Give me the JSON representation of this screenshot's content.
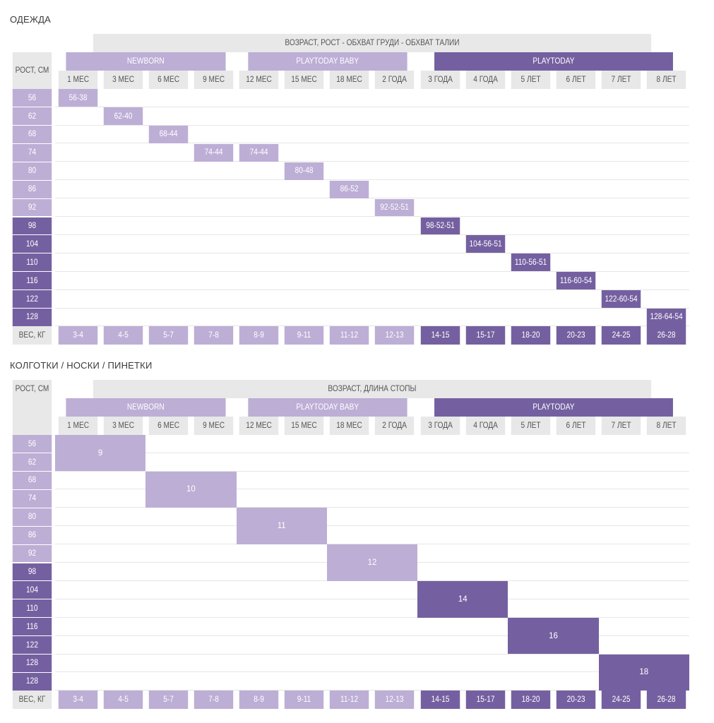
{
  "table1": {
    "title": "ОДЕЖДА",
    "height_header": "РОСТ, СМ",
    "top_header": "ВОЗРАСТ, РОСТ - ОБХВАТ ГРУДИ - ОБХВАТ ТАЛИИ",
    "groups": [
      {
        "label": "NEWBORN",
        "span": 4,
        "tone": "light"
      },
      {
        "label": "PLAYTODAY BABY",
        "span": 4,
        "tone": "light"
      },
      {
        "label": "PLAYTODAY",
        "span": 6,
        "tone": "dark"
      }
    ],
    "ages": [
      "1 МЕС",
      "3 МЕС",
      "6 МЕС",
      "9 МЕС",
      "12 МЕС",
      "15 МЕС",
      "18 МЕС",
      "2 ГОДА",
      "3 ГОДА",
      "4 ГОДА",
      "5 ЛЕТ",
      "6 ЛЕТ",
      "7 ЛЕТ",
      "8 ЛЕТ"
    ],
    "rows": [
      {
        "height": "56",
        "tone": "light",
        "cells": [
          {
            "col": 0,
            "text": "56-38"
          }
        ]
      },
      {
        "height": "62",
        "tone": "light",
        "cells": [
          {
            "col": 1,
            "text": "62-40"
          }
        ]
      },
      {
        "height": "68",
        "tone": "light",
        "cells": [
          {
            "col": 2,
            "text": "68-44"
          }
        ]
      },
      {
        "height": "74",
        "tone": "light",
        "cells": [
          {
            "col": 3,
            "text": "74-44"
          },
          {
            "col": 4,
            "text": "74-44"
          }
        ]
      },
      {
        "height": "80",
        "tone": "light",
        "cells": [
          {
            "col": 5,
            "text": "80-48"
          }
        ]
      },
      {
        "height": "86",
        "tone": "light",
        "cells": [
          {
            "col": 6,
            "text": "86-52"
          }
        ]
      },
      {
        "height": "92",
        "tone": "light",
        "cells": [
          {
            "col": 7,
            "text": "92-52-51"
          }
        ]
      },
      {
        "height": "98",
        "tone": "dark",
        "cells": [
          {
            "col": 8,
            "text": "98-52-51"
          }
        ]
      },
      {
        "height": "104",
        "tone": "dark",
        "cells": [
          {
            "col": 9,
            "text": "104-56-51"
          }
        ]
      },
      {
        "height": "110",
        "tone": "dark",
        "cells": [
          {
            "col": 10,
            "text": "110-56-51"
          }
        ]
      },
      {
        "height": "116",
        "tone": "dark",
        "cells": [
          {
            "col": 11,
            "text": "116-60-54"
          }
        ]
      },
      {
        "height": "122",
        "tone": "dark",
        "cells": [
          {
            "col": 12,
            "text": "122-60-54"
          }
        ]
      },
      {
        "height": "128",
        "tone": "dark",
        "cells": [
          {
            "col": 13,
            "text": "128-64-54"
          }
        ]
      }
    ],
    "weight_header": "ВЕС, КГ",
    "weights": [
      "3-4",
      "4-5",
      "5-7",
      "7-8",
      "8-9",
      "9-11",
      "11-12",
      "12-13",
      "14-15",
      "15-17",
      "18-20",
      "20-23",
      "24-25",
      "26-28"
    ]
  },
  "table2": {
    "title": "КОЛГОТКИ / НОСКИ / ПИНЕТКИ",
    "height_header": "РОСТ, СМ",
    "top_header": "ВОЗРАСТ, ДЛИНА СТОПЫ",
    "groups": [
      {
        "label": "NEWBORN",
        "span": 4,
        "tone": "light"
      },
      {
        "label": "PLAYTODAY BABY",
        "span": 4,
        "tone": "light"
      },
      {
        "label": "PLAYTODAY",
        "span": 6,
        "tone": "dark"
      }
    ],
    "ages": [
      "1 МЕС",
      "3 МЕС",
      "6 МЕС",
      "9 МЕС",
      "12 МЕС",
      "15 МЕС",
      "18 МЕС",
      "2 ГОДА",
      "3 ГОДА",
      "4 ГОДА",
      "5 ЛЕТ",
      "6 ЛЕТ",
      "7 ЛЕТ",
      "8 ЛЕТ"
    ],
    "heights": [
      {
        "label": "56",
        "tone": "light"
      },
      {
        "label": "62",
        "tone": "light"
      },
      {
        "label": "68",
        "tone": "light"
      },
      {
        "label": "74",
        "tone": "light"
      },
      {
        "label": "80",
        "tone": "light"
      },
      {
        "label": "86",
        "tone": "light"
      },
      {
        "label": "92",
        "tone": "light"
      },
      {
        "label": "98",
        "tone": "dark"
      },
      {
        "label": "104",
        "tone": "dark"
      },
      {
        "label": "110",
        "tone": "dark"
      },
      {
        "label": "116",
        "tone": "dark"
      },
      {
        "label": "122",
        "tone": "dark"
      },
      {
        "label": "128",
        "tone": "dark"
      },
      {
        "label": "128",
        "tone": "dark"
      }
    ],
    "blocks": [
      {
        "row": 0,
        "rows": 2,
        "col": 0,
        "cols": 2,
        "text": "9",
        "tone": "light"
      },
      {
        "row": 2,
        "rows": 2,
        "col": 2,
        "cols": 2,
        "text": "10",
        "tone": "light"
      },
      {
        "row": 4,
        "rows": 2,
        "col": 4,
        "cols": 2,
        "text": "11",
        "tone": "light"
      },
      {
        "row": 6,
        "rows": 2,
        "col": 6,
        "cols": 2,
        "text": "12",
        "tone": "light"
      },
      {
        "row": 8,
        "rows": 2,
        "col": 8,
        "cols": 2,
        "text": "14",
        "tone": "dark"
      },
      {
        "row": 10,
        "rows": 2,
        "col": 10,
        "cols": 2,
        "text": "16",
        "tone": "dark"
      },
      {
        "row": 12,
        "rows": 2,
        "col": 12,
        "cols": 2,
        "text": "18",
        "tone": "dark"
      }
    ],
    "weight_header": "ВЕС, КГ",
    "weights": [
      "3-4",
      "4-5",
      "5-7",
      "7-8",
      "8-9",
      "9-11",
      "11-12",
      "12-13",
      "14-15",
      "15-17",
      "18-20",
      "20-23",
      "24-25",
      "26-28"
    ]
  }
}
